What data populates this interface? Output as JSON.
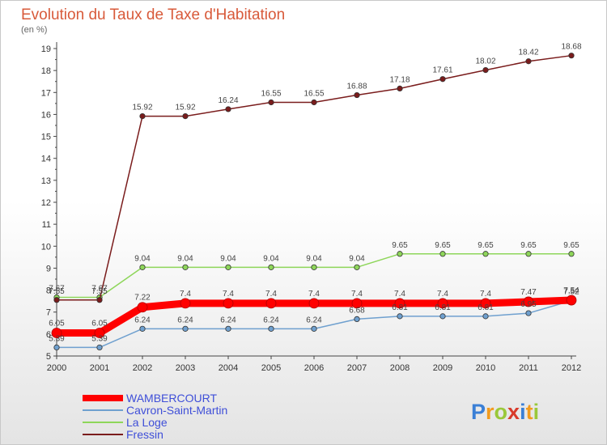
{
  "chart_data": {
    "type": "line",
    "title": "Evolution du Taux de Taxe d'Habitation",
    "ylabel": "(en %)",
    "x": [
      "2000",
      "2001",
      "2002",
      "2003",
      "2004",
      "2005",
      "2006",
      "2007",
      "2008",
      "2009",
      "2010",
      "2011",
      "2012"
    ],
    "ylim": [
      5,
      19
    ],
    "yticks": [
      5,
      6,
      7,
      8,
      9,
      10,
      11,
      12,
      13,
      14,
      15,
      16,
      17,
      18,
      19
    ],
    "grid": false,
    "legend": "bottom-left",
    "series": [
      {
        "name": "WAMBERCOURT",
        "color": "#ff0000",
        "values": [
          6.05,
          6.05,
          7.22,
          7.4,
          7.4,
          7.4,
          7.4,
          7.4,
          7.4,
          7.4,
          7.4,
          7.47,
          7.54
        ],
        "labels": [
          "6.05",
          "6.05",
          "7.22",
          "7.4",
          "7.4",
          "7.4",
          "7.4",
          "7.4",
          "7.4",
          "7.4",
          "7.4",
          "7.47",
          "7.54"
        ]
      },
      {
        "name": "Cavron-Saint-Martin",
        "color": "#6fa0cf",
        "values": [
          5.39,
          5.39,
          6.24,
          6.24,
          6.24,
          6.24,
          6.24,
          6.68,
          6.81,
          6.81,
          6.81,
          6.95,
          7.52
        ],
        "labels": [
          "5.39",
          "5.39",
          "6.24",
          "6.24",
          "6.24",
          "6.24",
          "6.24",
          "6.68",
          "6.81",
          "6.81",
          "6.81",
          "6.95",
          "7.52"
        ]
      },
      {
        "name": "La Loge",
        "color": "#8ed65a",
        "values": [
          7.67,
          7.67,
          9.04,
          9.04,
          9.04,
          9.04,
          9.04,
          9.04,
          9.65,
          9.65,
          9.65,
          9.65,
          9.65
        ],
        "labels": [
          "7.67",
          "7.67",
          "9.04",
          "9.04",
          "9.04",
          "9.04",
          "9.04",
          "9.04",
          "9.65",
          "9.65",
          "9.65",
          "9.65",
          "9.65"
        ]
      },
      {
        "name": "Fressin",
        "color": "#7a1c1c",
        "values": [
          7.55,
          7.55,
          15.92,
          15.92,
          16.24,
          16.55,
          16.55,
          16.88,
          17.18,
          17.61,
          18.02,
          18.42,
          18.68
        ],
        "labels": [
          "7.55",
          "7.55",
          "15.92",
          "15.92",
          "16.24",
          "16.55",
          "16.55",
          "16.88",
          "17.18",
          "17.61",
          "18.02",
          "18.42",
          "18.68"
        ]
      }
    ]
  },
  "logo": {
    "letters": [
      "P",
      "r",
      "o",
      "x",
      "i",
      "t",
      "i"
    ],
    "colors": [
      "#3a7fd6",
      "#f29b1e",
      "#9ac83a",
      "#d83a2a",
      "#3a7fd6",
      "#f29b1e",
      "#9ac83a"
    ]
  }
}
